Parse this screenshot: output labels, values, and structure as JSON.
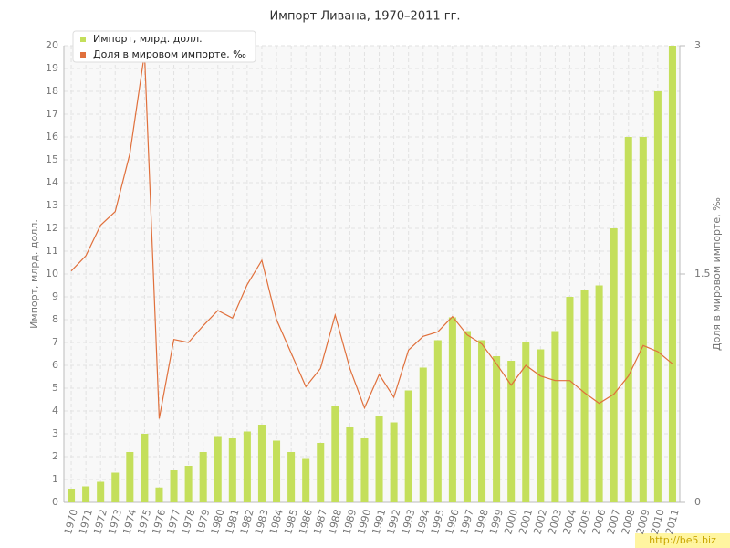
{
  "chart_data": {
    "type": "bar_line",
    "title": "Импорт Ливана, 1970–2011 гг.",
    "y_label": "Импорт, млрд. долл.",
    "y2_label": "Доля в мировом импорте, ‰",
    "watermark": "http://be5.biz",
    "categories": [
      "1970",
      "1971",
      "1972",
      "1973",
      "1974",
      "1975",
      "1976",
      "1977",
      "1978",
      "1979",
      "1980",
      "1981",
      "1982",
      "1983",
      "1984",
      "1985",
      "1986",
      "1987",
      "1988",
      "1989",
      "1990",
      "1991",
      "1992",
      "1993",
      "1994",
      "1995",
      "1996",
      "1997",
      "1998",
      "1999",
      "2000",
      "2001",
      "2002",
      "2003",
      "2004",
      "2005",
      "2006",
      "2007",
      "2008",
      "2009",
      "2010",
      "2011"
    ],
    "series": [
      {
        "name": "Импорт, млрд. долл.",
        "type": "bar",
        "color": "#c4df5b",
        "values": [
          0.6,
          0.7,
          0.9,
          1.3,
          2.2,
          3.0,
          0.65,
          1.4,
          1.6,
          2.2,
          2.9,
          2.8,
          3.1,
          3.4,
          2.7,
          2.2,
          1.9,
          2.6,
          4.2,
          3.3,
          2.8,
          3.8,
          3.5,
          4.9,
          5.9,
          7.1,
          8.1,
          7.5,
          7.1,
          6.4,
          6.2,
          7.0,
          6.7,
          7.5,
          9.0,
          9.3,
          9.5,
          12.0,
          16.0,
          16.0,
          18.0,
          20.0
        ]
      },
      {
        "name": "Доля в мировом импорте, ‰",
        "type": "line",
        "axis": "y2",
        "color": "#e0703c",
        "values": [
          1.52,
          1.62,
          1.82,
          1.91,
          2.29,
          2.95,
          0.55,
          1.07,
          1.05,
          1.16,
          1.26,
          1.21,
          1.43,
          1.59,
          1.2,
          0.98,
          0.76,
          0.88,
          1.23,
          0.88,
          0.62,
          0.84,
          0.69,
          1.0,
          1.09,
          1.12,
          1.22,
          1.1,
          1.04,
          0.91,
          0.77,
          0.9,
          0.83,
          0.8,
          0.8,
          0.72,
          0.65,
          0.71,
          0.83,
          1.03,
          0.99,
          0.91
        ]
      }
    ],
    "ylim": [
      0,
      20
    ],
    "yticks": [
      0,
      1,
      2,
      3,
      4,
      5,
      6,
      7,
      8,
      9,
      10,
      11,
      12,
      13,
      14,
      15,
      16,
      17,
      18,
      19,
      20
    ],
    "y2lim": [
      0,
      3
    ],
    "y2ticks": [
      0,
      1.5,
      3
    ],
    "grid": true,
    "legend": "top-left"
  }
}
